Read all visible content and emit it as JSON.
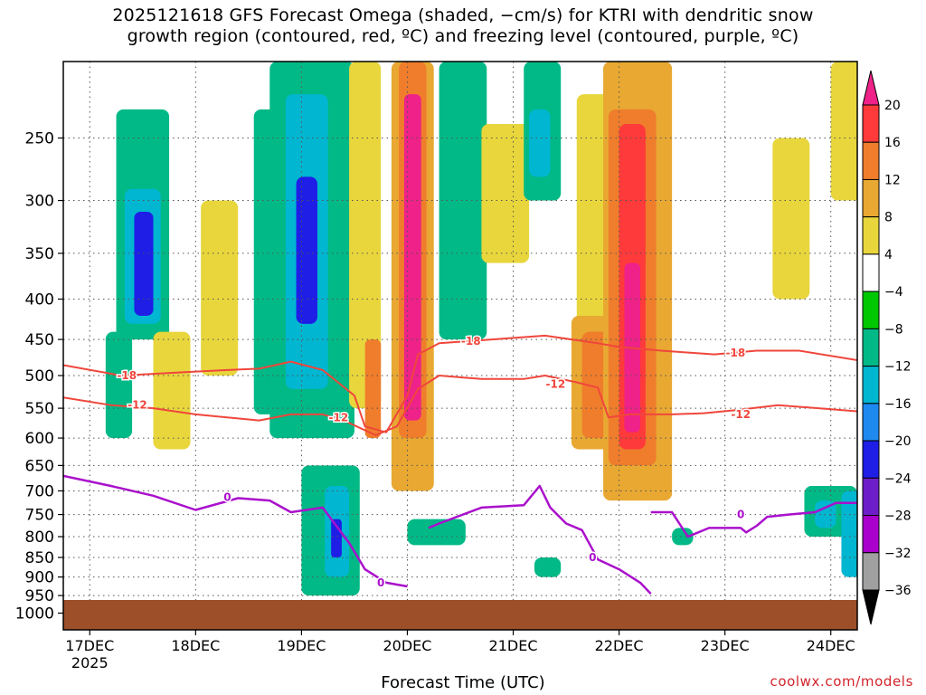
{
  "header": {
    "title_line1": "2025121618 GFS Forecast Omega (shaded, −cm/s) for KTRI with dendritic snow",
    "title_line2": "growth region (contoured, red, ºC) and freezing level (contoured, purple, ºC)"
  },
  "footer": {
    "xlabel": "Forecast Time (UTC)",
    "credit": "coolwx.com/models"
  },
  "chart_data": {
    "type": "heatmap",
    "xlabel": "Forecast Time (UTC)",
    "ylabel": "",
    "x_ticks": [
      {
        "t": 0,
        "label": "17DEC",
        "sub": "2025"
      },
      {
        "t": 1,
        "label": "18DEC"
      },
      {
        "t": 2,
        "label": "19DEC"
      },
      {
        "t": 3,
        "label": "20DEC"
      },
      {
        "t": 4,
        "label": "21DEC"
      },
      {
        "t": 5,
        "label": "22DEC"
      },
      {
        "t": 6,
        "label": "23DEC"
      },
      {
        "t": 7,
        "label": "24DEC"
      }
    ],
    "xlim": [
      -0.25,
      7.25
    ],
    "y_ticks": [
      250,
      300,
      350,
      400,
      450,
      500,
      550,
      600,
      650,
      700,
      750,
      800,
      850,
      900,
      950,
      1000
    ],
    "ylim": [
      1050,
      200
    ],
    "grid": true,
    "colorbar": {
      "levels": [
        "20",
        "16",
        "12",
        "8",
        "4",
        "−4",
        "−8",
        "−12",
        "−16",
        "−20",
        "−24",
        "−28",
        "−32",
        "−36"
      ],
      "colors": [
        "#ee2288",
        "#ff3a3a",
        "#ef7d2c",
        "#e8a832",
        "#e8d63c",
        "#ffffff",
        "#00c800",
        "#00b986",
        "#00b6d0",
        "#1e8af0",
        "#1e1ee6",
        "#6e1ec8",
        "#aa00cc",
        "#a0a0a0",
        "#000000"
      ]
    },
    "omega_cells": [
      {
        "t0": -0.3,
        "t1": 7.3,
        "p0": 200,
        "p1": 1050,
        "v": 0
      },
      {
        "t0": 0.25,
        "t1": 0.75,
        "p0": 230,
        "p1": 450,
        "v": -9
      },
      {
        "t0": 0.33,
        "t1": 0.67,
        "p0": 290,
        "p1": 430,
        "v": -14
      },
      {
        "t0": 0.42,
        "t1": 0.6,
        "p0": 310,
        "p1": 420,
        "v": -21
      },
      {
        "t0": 0.15,
        "t1": 0.4,
        "p0": 440,
        "p1": 600,
        "v": -8
      },
      {
        "t0": 0.6,
        "t1": 0.95,
        "p0": 440,
        "p1": 620,
        "v": 5
      },
      {
        "t0": 1.55,
        "t1": 1.9,
        "p0": 230,
        "p1": 560,
        "v": -9
      },
      {
        "t0": 1.05,
        "t1": 1.4,
        "p0": 300,
        "p1": 500,
        "v": 5
      },
      {
        "t0": 1.7,
        "t1": 2.5,
        "p0": 200,
        "p1": 600,
        "v": -10
      },
      {
        "t0": 1.85,
        "t1": 2.25,
        "p0": 220,
        "p1": 520,
        "v": -15
      },
      {
        "t0": 1.95,
        "t1": 2.15,
        "p0": 280,
        "p1": 430,
        "v": -21
      },
      {
        "t0": 2.45,
        "t1": 2.75,
        "p0": 200,
        "p1": 550,
        "v": 5
      },
      {
        "t0": 2.6,
        "t1": 2.75,
        "p0": 450,
        "p1": 600,
        "v": 13
      },
      {
        "t0": 2.85,
        "t1": 3.25,
        "p0": 200,
        "p1": 700,
        "v": 9
      },
      {
        "t0": 2.92,
        "t1": 3.18,
        "p0": 200,
        "p1": 600,
        "v": 14
      },
      {
        "t0": 2.97,
        "t1": 3.13,
        "p0": 220,
        "p1": 570,
        "v": 21
      },
      {
        "t0": 2.0,
        "t1": 2.55,
        "p0": 650,
        "p1": 950,
        "v": -9
      },
      {
        "t0": 2.22,
        "t1": 2.45,
        "p0": 690,
        "p1": 900,
        "v": -15
      },
      {
        "t0": 2.28,
        "t1": 2.38,
        "p0": 760,
        "p1": 850,
        "v": -21
      },
      {
        "t0": 3.3,
        "t1": 3.75,
        "p0": 200,
        "p1": 450,
        "v": -8
      },
      {
        "t0": 3.7,
        "t1": 4.15,
        "p0": 240,
        "p1": 360,
        "v": 5
      },
      {
        "t0": 4.1,
        "t1": 4.45,
        "p0": 200,
        "p1": 300,
        "v": -9
      },
      {
        "t0": 4.15,
        "t1": 4.35,
        "p0": 230,
        "p1": 280,
        "v": -13
      },
      {
        "t0": 4.6,
        "t1": 5.2,
        "p0": 220,
        "p1": 470,
        "v": 5
      },
      {
        "t0": 4.55,
        "t1": 5.1,
        "p0": 420,
        "p1": 620,
        "v": 9
      },
      {
        "t0": 4.65,
        "t1": 5.0,
        "p0": 440,
        "p1": 600,
        "v": 13
      },
      {
        "t0": 4.85,
        "t1": 5.5,
        "p0": 200,
        "p1": 720,
        "v": 9
      },
      {
        "t0": 4.9,
        "t1": 5.35,
        "p0": 230,
        "p1": 650,
        "v": 13
      },
      {
        "t0": 5.0,
        "t1": 5.25,
        "p0": 240,
        "p1": 620,
        "v": 17
      },
      {
        "t0": 5.05,
        "t1": 5.2,
        "p0": 360,
        "p1": 590,
        "v": 21
      },
      {
        "t0": 6.45,
        "t1": 6.8,
        "p0": 250,
        "p1": 400,
        "v": 5
      },
      {
        "t0": 7.0,
        "t1": 7.3,
        "p0": 200,
        "p1": 300,
        "v": 5
      },
      {
        "t0": 6.75,
        "t1": 7.25,
        "p0": 690,
        "p1": 800,
        "v": -10
      },
      {
        "t0": 6.85,
        "t1": 7.05,
        "p0": 720,
        "p1": 780,
        "v": -14
      },
      {
        "t0": 7.1,
        "t1": 7.3,
        "p0": 700,
        "p1": 900,
        "v": -12
      },
      {
        "t0": 3.0,
        "t1": 3.55,
        "p0": 760,
        "p1": 820,
        "v": -8
      },
      {
        "t0": 4.2,
        "t1": 4.45,
        "p0": 850,
        "p1": 900,
        "v": -9
      },
      {
        "t0": 5.5,
        "t1": 5.7,
        "p0": 780,
        "p1": 820,
        "v": -8
      }
    ],
    "contours": [
      {
        "label": "-18",
        "color": "#f0463c",
        "width": 2,
        "points": [
          [
            -0.25,
            485
          ],
          [
            0.3,
            500
          ],
          [
            0.9,
            495
          ],
          [
            1.3,
            492
          ],
          [
            1.6,
            490
          ],
          [
            1.9,
            480
          ],
          [
            2.2,
            492
          ],
          [
            2.5,
            530
          ],
          [
            2.6,
            580
          ],
          [
            2.8,
            590
          ],
          [
            3.0,
            530
          ],
          [
            3.1,
            470
          ],
          [
            3.3,
            455
          ],
          [
            3.8,
            450
          ],
          [
            4.3,
            445
          ],
          [
            4.8,
            455
          ],
          [
            5.0,
            460
          ],
          [
            5.4,
            465
          ],
          [
            5.9,
            470
          ],
          [
            6.3,
            465
          ],
          [
            6.7,
            465
          ],
          [
            7.25,
            478
          ]
        ],
        "labels": [
          [
            0.35,
            500
          ],
          [
            3.6,
            452
          ],
          [
            6.1,
            468
          ]
        ]
      },
      {
        "label": "-12",
        "color": "#f0463c",
        "width": 2,
        "points": [
          [
            -0.25,
            533
          ],
          [
            0.2,
            545
          ],
          [
            0.6,
            550
          ],
          [
            1.0,
            560
          ],
          [
            1.6,
            570
          ],
          [
            1.9,
            560
          ],
          [
            2.2,
            560
          ],
          [
            2.4,
            570
          ],
          [
            2.7,
            595
          ],
          [
            2.9,
            580
          ],
          [
            3.1,
            520
          ],
          [
            3.3,
            500
          ],
          [
            3.7,
            505
          ],
          [
            4.1,
            505
          ],
          [
            4.3,
            500
          ],
          [
            4.6,
            510
          ],
          [
            4.8,
            518
          ],
          [
            4.9,
            565
          ],
          [
            5.1,
            560
          ],
          [
            5.5,
            560
          ],
          [
            5.8,
            558
          ],
          [
            6.1,
            553
          ],
          [
            6.5,
            545
          ],
          [
            7.25,
            555
          ]
        ],
        "labels": [
          [
            0.45,
            545
          ],
          [
            2.35,
            565
          ],
          [
            4.4,
            513
          ],
          [
            6.15,
            560
          ]
        ]
      },
      {
        "label": "0",
        "color": "#aa10cc",
        "width": 2.5,
        "points": [
          [
            -0.25,
            670
          ],
          [
            0.2,
            690
          ],
          [
            0.6,
            710
          ],
          [
            1.0,
            740
          ],
          [
            1.4,
            715
          ],
          [
            1.7,
            720
          ],
          [
            1.9,
            745
          ],
          [
            2.2,
            735
          ],
          [
            2.45,
            815
          ],
          [
            2.6,
            880
          ],
          [
            2.8,
            915
          ],
          [
            3.0,
            925
          ]
        ],
        "labels": [
          [
            1.3,
            713
          ],
          [
            2.75,
            915
          ]
        ]
      },
      {
        "label": "0",
        "color": "#aa10cc",
        "width": 2.5,
        "points": [
          [
            3.2,
            780
          ],
          [
            3.3,
            770
          ],
          [
            3.7,
            735
          ],
          [
            4.1,
            730
          ],
          [
            4.25,
            690
          ],
          [
            4.35,
            735
          ],
          [
            4.5,
            770
          ],
          [
            4.65,
            785
          ],
          [
            4.8,
            855
          ],
          [
            5.0,
            880
          ],
          [
            5.2,
            915
          ],
          [
            5.3,
            945
          ]
        ],
        "labels": [
          [
            4.75,
            850
          ]
        ]
      },
      {
        "label": "0",
        "color": "#aa10cc",
        "width": 2.5,
        "points": [
          [
            5.3,
            745
          ],
          [
            5.5,
            745
          ],
          [
            5.65,
            800
          ],
          [
            5.85,
            780
          ],
          [
            6.15,
            780
          ],
          [
            6.2,
            790
          ],
          [
            6.3,
            775
          ],
          [
            6.4,
            755
          ],
          [
            6.6,
            750
          ],
          [
            6.85,
            745
          ],
          [
            7.05,
            725
          ],
          [
            7.25,
            725
          ]
        ],
        "labels": [
          [
            6.15,
            750
          ]
        ]
      }
    ]
  }
}
